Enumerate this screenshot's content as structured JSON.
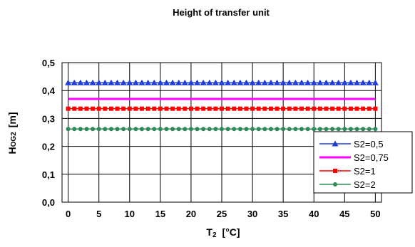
{
  "chart_data": {
    "type": "line",
    "title": "Height of transfer unit",
    "xlabel": {
      "main": "T",
      "sub": "2",
      "unit": "[°C]"
    },
    "ylabel": {
      "main": "H",
      "sub": "OG2",
      "unit": "[m]"
    },
    "xlim": [
      -1,
      51
    ],
    "ylim": [
      0,
      0.5
    ],
    "xticks": [
      "0",
      "5",
      "10",
      "15",
      "20",
      "25",
      "30",
      "35",
      "40",
      "45",
      "50"
    ],
    "xtick_values": [
      0,
      5,
      10,
      15,
      20,
      25,
      30,
      35,
      40,
      45,
      50
    ],
    "yticks": [
      "0,0",
      "0,1",
      "0,2",
      "0,3",
      "0,4",
      "0,5"
    ],
    "ytick_values": [
      0,
      0.1,
      0.2,
      0.3,
      0.4,
      0.5
    ],
    "grid": {
      "vertical": true,
      "horizontal": true
    },
    "legend_position": "bottom-right",
    "x": [
      0,
      1,
      2,
      3,
      4,
      5,
      6,
      7,
      8,
      9,
      10,
      11,
      12,
      13,
      14,
      15,
      16,
      17,
      18,
      19,
      20,
      21,
      22,
      23,
      24,
      25,
      26,
      27,
      28,
      29,
      30,
      31,
      32,
      33,
      34,
      35,
      36,
      37,
      38,
      39,
      40,
      41,
      42,
      43,
      44,
      45,
      46,
      47,
      48,
      49,
      50
    ],
    "series": [
      {
        "name": "S2=0,5",
        "value": 0.428,
        "color": "#1f3fd6",
        "marker": "triangle"
      },
      {
        "name": "S2=0,75",
        "value": 0.37,
        "color": "#ff00ff",
        "marker": "none"
      },
      {
        "name": "S2=1",
        "value": 0.335,
        "color": "#ff0000",
        "marker": "square"
      },
      {
        "name": "S2=2",
        "value": 0.262,
        "color": "#2e8b57",
        "marker": "circle"
      }
    ]
  }
}
